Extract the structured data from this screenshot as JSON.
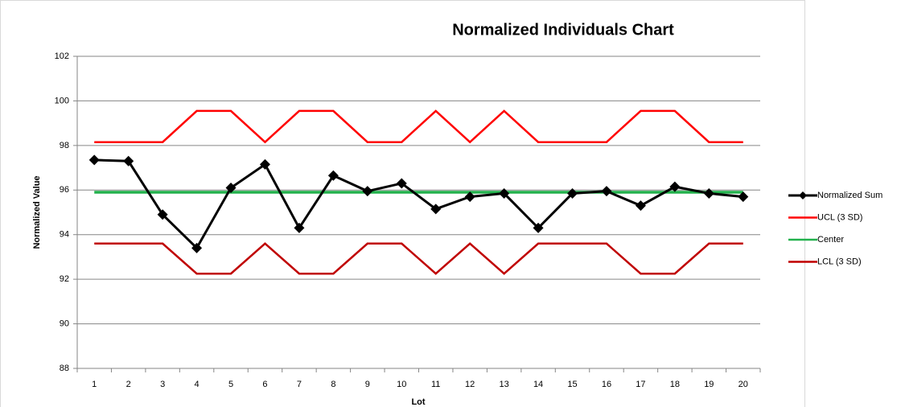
{
  "chart_data": {
    "type": "line",
    "title": "Normalized Individuals Chart",
    "x_label": "Lot",
    "y_label": "Normalized Value",
    "categories": [
      "1",
      "2",
      "3",
      "4",
      "5",
      "6",
      "7",
      "8",
      "9",
      "10",
      "11",
      "12",
      "13",
      "14",
      "15",
      "16",
      "17",
      "18",
      "19",
      "20"
    ],
    "series": [
      {
        "name": "Normalized Sum",
        "color": "#000000",
        "marker": "diamond",
        "values": [
          97.35,
          97.3,
          94.9,
          93.4,
          96.1,
          97.15,
          94.3,
          96.65,
          95.95,
          96.3,
          95.15,
          95.7,
          95.85,
          94.3,
          95.85,
          95.95,
          95.3,
          96.15,
          95.85,
          95.7
        ]
      },
      {
        "name": "UCL (3 SD)",
        "color": "#ff0000",
        "values": [
          98.15,
          98.15,
          98.15,
          99.55,
          99.55,
          98.15,
          99.55,
          99.55,
          98.15,
          98.15,
          99.55,
          98.15,
          99.55,
          98.15,
          98.15,
          98.15,
          99.55,
          99.55,
          98.15,
          98.15
        ]
      },
      {
        "name": "Center",
        "color": "#22b14c",
        "values": [
          95.9,
          95.9,
          95.9,
          95.9,
          95.9,
          95.9,
          95.9,
          95.9,
          95.9,
          95.9,
          95.9,
          95.9,
          95.9,
          95.9,
          95.9,
          95.9,
          95.9,
          95.9,
          95.9,
          95.9
        ]
      },
      {
        "name": "LCL (3 SD)",
        "color": "#c00000",
        "values": [
          93.6,
          93.6,
          93.6,
          92.25,
          92.25,
          93.6,
          92.25,
          92.25,
          93.6,
          93.6,
          92.25,
          93.6,
          92.25,
          93.6,
          93.6,
          93.6,
          92.25,
          92.25,
          93.6,
          93.6
        ]
      }
    ],
    "ylim": [
      88,
      102
    ],
    "yticks": [
      88,
      90,
      92,
      94,
      96,
      98,
      100,
      102
    ],
    "grid": true,
    "legend": "right"
  }
}
